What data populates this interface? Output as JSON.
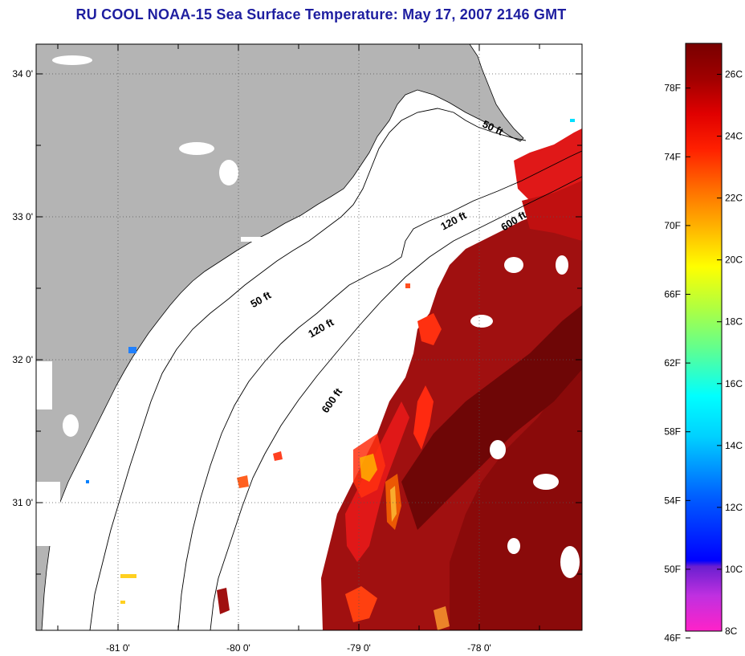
{
  "title": "RU COOL  NOAA-15  Sea Surface Temperature:  May 17, 2007 2146 GMT",
  "map": {
    "lat_ticks": [
      {
        "value": 34,
        "label": "34 0'"
      },
      {
        "value": 33,
        "label": "33 0'"
      },
      {
        "value": 32,
        "label": "32 0'"
      },
      {
        "value": 31,
        "label": "31 0'"
      }
    ],
    "lon_ticks": [
      {
        "value": -81,
        "label": "-81 0'"
      },
      {
        "value": -80,
        "label": "-80 0'"
      },
      {
        "value": -79,
        "label": "-79 0'"
      },
      {
        "value": -78,
        "label": "-78 0'"
      }
    ],
    "contour_labels": [
      {
        "text": "50 ft",
        "lon": -77.9,
        "lat": 33.6
      },
      {
        "text": "50 ft",
        "lon": -79.8,
        "lat": 32.4
      },
      {
        "text": "120 ft",
        "lon": -78.2,
        "lat": 32.95
      },
      {
        "text": "120 ft",
        "lon": -79.3,
        "lat": 32.2
      },
      {
        "text": "600 ft",
        "lon": -77.7,
        "lat": 32.95
      },
      {
        "text": "600 ft",
        "lon": -79.2,
        "lat": 31.7
      }
    ],
    "land_color": "#b4b4b4",
    "water_color": "#ffffff",
    "cloud_color": "#ffffff"
  },
  "colorbar": {
    "fahrenheit_labels": [
      "78F",
      "74F",
      "70F",
      "66F",
      "62F",
      "58F",
      "54F",
      "50F",
      "46F"
    ],
    "celsius_labels": [
      "26C",
      "24C",
      "22C",
      "20C",
      "18C",
      "16C",
      "14C",
      "12C",
      "10C",
      "8C"
    ],
    "range_celsius": [
      8,
      27
    ],
    "colormap": [
      "#ff22c8",
      "#b030e0",
      "#6a1fd0",
      "#0000ff",
      "#0060ff",
      "#00b0ff",
      "#00ffff",
      "#50ffa0",
      "#b0ff40",
      "#ffff00",
      "#ffb000",
      "#ff7000",
      "#ff2000",
      "#e00000",
      "#b00000",
      "#8a0000",
      "#6a0000"
    ]
  }
}
